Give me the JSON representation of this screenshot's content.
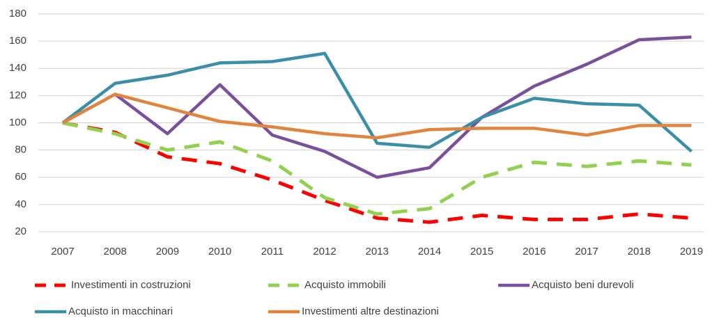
{
  "chart_data": {
    "type": "line",
    "categories": [
      "2007",
      "2008",
      "2009",
      "2010",
      "2011",
      "2012",
      "2013",
      "2014",
      "2015",
      "2016",
      "2017",
      "2018",
      "2019"
    ],
    "series": [
      {
        "name": "Investimenti in costruzioni",
        "color": "#ff0000",
        "dashed": true,
        "values": [
          100,
          93,
          75,
          70,
          58,
          43,
          30,
          27,
          32,
          29,
          29,
          33,
          30
        ]
      },
      {
        "name": "Acquisto immobili",
        "color": "#92d050",
        "dashed": true,
        "values": [
          100,
          92,
          80,
          86,
          72,
          45,
          33,
          37,
          60,
          71,
          68,
          72,
          69
        ]
      },
      {
        "name": "Acquisto beni durevoli",
        "color": "#7a4f9c",
        "dashed": false,
        "values": [
          100,
          121,
          92,
          128,
          91,
          79,
          60,
          67,
          104,
          127,
          143,
          161,
          163
        ]
      },
      {
        "name": "Acquisto in macchinari",
        "color": "#3a8fa8",
        "dashed": false,
        "values": [
          100,
          129,
          135,
          144,
          145,
          151,
          85,
          82,
          104,
          118,
          114,
          113,
          79
        ]
      },
      {
        "name": "Investimenti altre destinazioni",
        "color": "#e0843e",
        "dashed": false,
        "values": [
          100,
          121,
          111,
          101,
          97,
          92,
          89,
          95,
          96,
          96,
          91,
          98,
          98
        ]
      }
    ],
    "ylim": [
      20,
      180
    ],
    "yticks": [
      20,
      40,
      60,
      80,
      100,
      120,
      140,
      160,
      180
    ],
    "grid": true
  }
}
